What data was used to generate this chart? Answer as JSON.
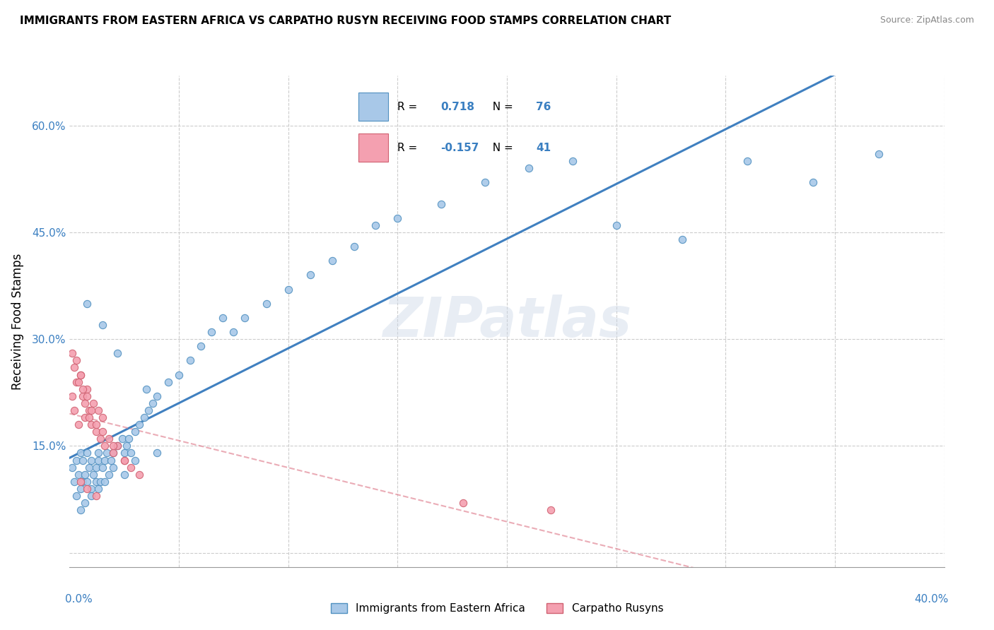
{
  "title": "IMMIGRANTS FROM EASTERN AFRICA VS CARPATHO RUSYN RECEIVING FOOD STAMPS CORRELATION CHART",
  "source": "Source: ZipAtlas.com",
  "ylabel": "Receiving Food Stamps",
  "x_lim": [
    0.0,
    0.4
  ],
  "y_lim": [
    -0.02,
    0.67
  ],
  "y_ticks": [
    0.0,
    0.15,
    0.3,
    0.45,
    0.6
  ],
  "y_tick_labels": [
    "",
    "15.0%",
    "30.0%",
    "45.0%",
    "60.0%"
  ],
  "x_tick_left": "0.0%",
  "x_tick_right": "40.0%",
  "watermark": "ZIPatlas",
  "series": [
    {
      "name": "Immigrants from Eastern Africa",
      "R": 0.718,
      "N": 76,
      "dot_color": "#a8c8e8",
      "edge_color": "#5090c0",
      "trend_color": "#4080c0",
      "trend_solid": true,
      "x": [
        0.001,
        0.002,
        0.003,
        0.003,
        0.004,
        0.005,
        0.005,
        0.006,
        0.006,
        0.007,
        0.008,
        0.008,
        0.009,
        0.01,
        0.01,
        0.011,
        0.012,
        0.012,
        0.013,
        0.013,
        0.014,
        0.015,
        0.016,
        0.017,
        0.018,
        0.019,
        0.02,
        0.022,
        0.024,
        0.025,
        0.026,
        0.027,
        0.028,
        0.03,
        0.032,
        0.034,
        0.036,
        0.038,
        0.04,
        0.045,
        0.05,
        0.055,
        0.06,
        0.065,
        0.07,
        0.075,
        0.08,
        0.09,
        0.1,
        0.11,
        0.12,
        0.13,
        0.14,
        0.15,
        0.17,
        0.19,
        0.21,
        0.23,
        0.25,
        0.28,
        0.31,
        0.34,
        0.37,
        0.005,
        0.007,
        0.01,
        0.013,
        0.016,
        0.02,
        0.025,
        0.03,
        0.04,
        0.008,
        0.015,
        0.022,
        0.035
      ],
      "y": [
        0.12,
        0.1,
        0.13,
        0.08,
        0.11,
        0.14,
        0.09,
        0.1,
        0.13,
        0.11,
        0.14,
        0.1,
        0.12,
        0.09,
        0.13,
        0.11,
        0.1,
        0.12,
        0.13,
        0.14,
        0.1,
        0.12,
        0.13,
        0.14,
        0.11,
        0.13,
        0.14,
        0.15,
        0.16,
        0.14,
        0.15,
        0.16,
        0.14,
        0.17,
        0.18,
        0.19,
        0.2,
        0.21,
        0.22,
        0.24,
        0.25,
        0.27,
        0.29,
        0.31,
        0.33,
        0.31,
        0.33,
        0.35,
        0.37,
        0.39,
        0.41,
        0.43,
        0.46,
        0.47,
        0.49,
        0.52,
        0.54,
        0.55,
        0.46,
        0.44,
        0.55,
        0.52,
        0.56,
        0.06,
        0.07,
        0.08,
        0.09,
        0.1,
        0.12,
        0.11,
        0.13,
        0.14,
        0.35,
        0.32,
        0.28,
        0.23
      ]
    },
    {
      "name": "Carpatho Rusyns",
      "R": -0.157,
      "N": 41,
      "dot_color": "#f4a0b0",
      "edge_color": "#d06070",
      "trend_color": "#e08090",
      "trend_solid": false,
      "x": [
        0.001,
        0.002,
        0.003,
        0.004,
        0.005,
        0.006,
        0.007,
        0.008,
        0.009,
        0.01,
        0.011,
        0.012,
        0.013,
        0.014,
        0.015,
        0.016,
        0.018,
        0.02,
        0.022,
        0.025,
        0.028,
        0.032,
        0.001,
        0.002,
        0.003,
        0.004,
        0.005,
        0.006,
        0.007,
        0.008,
        0.009,
        0.01,
        0.012,
        0.015,
        0.02,
        0.025,
        0.18,
        0.22,
        0.005,
        0.008,
        0.012
      ],
      "y": [
        0.22,
        0.2,
        0.24,
        0.18,
        0.25,
        0.22,
        0.19,
        0.23,
        0.2,
        0.18,
        0.21,
        0.17,
        0.2,
        0.16,
        0.19,
        0.15,
        0.16,
        0.14,
        0.15,
        0.13,
        0.12,
        0.11,
        0.28,
        0.26,
        0.27,
        0.24,
        0.25,
        0.23,
        0.21,
        0.22,
        0.19,
        0.2,
        0.18,
        0.17,
        0.15,
        0.13,
        0.07,
        0.06,
        0.1,
        0.09,
        0.08
      ]
    }
  ]
}
